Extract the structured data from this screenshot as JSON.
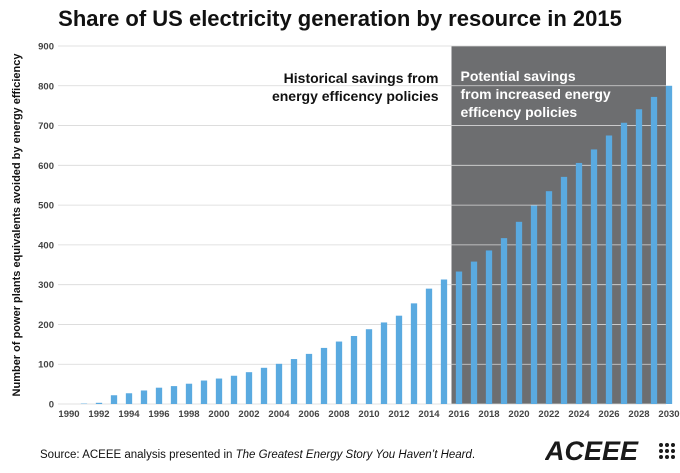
{
  "title": "Share of US electricity generation by resource in 2015",
  "source": {
    "prefix": "Source: ACEEE analysis presented in ",
    "italic": "The Greatest Energy Story You Haven’t Heard",
    "suffix": "."
  },
  "logo_text": "ACEEE",
  "colors": {
    "bar": "#5aaae0",
    "shade": "#6d6e70",
    "grid": "#d8d8d8",
    "axis_text": "#444444",
    "white": "#ffffff",
    "brand": "#1a1a1a"
  },
  "chart_data": {
    "type": "bar",
    "title": "Share of US electricity generation by resource in 2015",
    "ylabel": "Number of power plants equivalents avoided by energy efficiency",
    "xlabel": "",
    "ylim": [
      0,
      900
    ],
    "yticks": [
      0,
      100,
      200,
      300,
      400,
      500,
      600,
      700,
      800,
      900
    ],
    "grid": true,
    "xtick_labels": [
      "1990",
      "1992",
      "1994",
      "1996",
      "1998",
      "2000",
      "2002",
      "2004",
      "2006",
      "2008",
      "2010",
      "2012",
      "2014",
      "2016",
      "2018",
      "2020",
      "2022",
      "2024",
      "2026",
      "2028",
      "2030"
    ],
    "categories": [
      1990,
      1991,
      1992,
      1993,
      1994,
      1995,
      1996,
      1997,
      1998,
      1999,
      2000,
      2001,
      2002,
      2003,
      2004,
      2005,
      2006,
      2007,
      2008,
      2009,
      2010,
      2011,
      2012,
      2013,
      2014,
      2015,
      2016,
      2017,
      2018,
      2019,
      2020,
      2021,
      2022,
      2023,
      2024,
      2025,
      2026,
      2027,
      2028,
      2029,
      2030
    ],
    "values": [
      0,
      1,
      3,
      22,
      27,
      34,
      41,
      45,
      51,
      59,
      64,
      71,
      80,
      91,
      101,
      113,
      126,
      141,
      157,
      171,
      188,
      205,
      222,
      253,
      290,
      313,
      333,
      358,
      386,
      417,
      458,
      499,
      535,
      571,
      606,
      640,
      675,
      707,
      741,
      772,
      800
    ],
    "shaded_from": 2015.5,
    "annotations": {
      "historical": [
        "Historical savings from",
        "energy efficency policies"
      ],
      "potential": [
        "Potential savings",
        "from increased energy",
        "efficency policies"
      ]
    }
  }
}
